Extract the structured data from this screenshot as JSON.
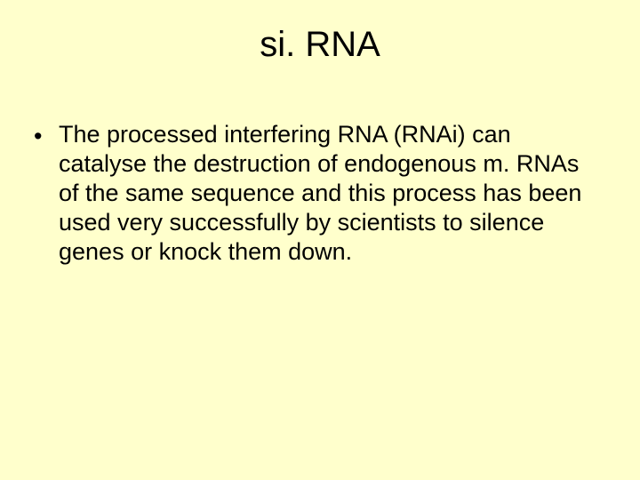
{
  "slide": {
    "title": "si. RNA",
    "bullets": [
      {
        "marker": "•",
        "text": "The processed interfering RNA (RNAi) can catalyse the destruction of endogenous m. RNAs of the same sequence and this process has been used very successfully by scientists to silence genes or knock them down."
      }
    ]
  },
  "style": {
    "background_color": "#ffffcc",
    "text_color": "#000000",
    "title_fontsize": 40,
    "body_fontsize": 27,
    "font_family": "Arial"
  }
}
